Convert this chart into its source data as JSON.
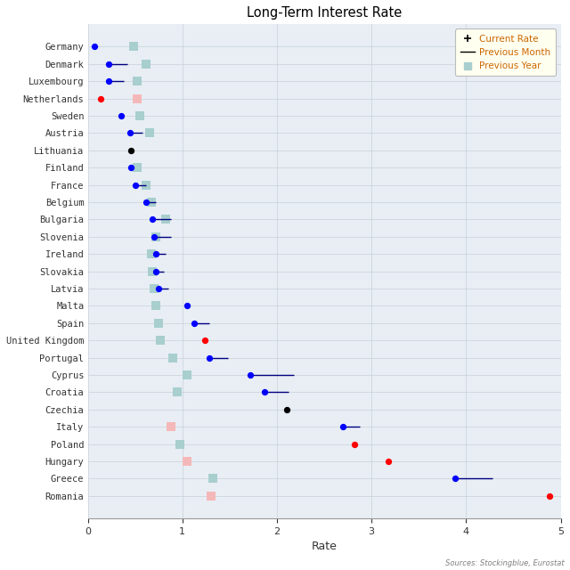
{
  "title": "Long-Term Interest Rate",
  "xlabel": "Rate",
  "source_text": "Sources: Stockingblue, Eurostat",
  "countries": [
    "Germany",
    "Denmark",
    "Luxembourg",
    "Netherlands",
    "Sweden",
    "Austria",
    "Lithuania",
    "Finland",
    "France",
    "Belgium",
    "Bulgaria",
    "Slovenia",
    "Ireland",
    "Slovakia",
    "Latvia",
    "Malta",
    "Spain",
    "United Kingdom",
    "Portugal",
    "Cyprus",
    "Croatia",
    "Czechia",
    "Italy",
    "Poland",
    "Hungary",
    "Greece",
    "Romania"
  ],
  "current_rate": [
    0.07,
    0.22,
    0.22,
    0.14,
    0.35,
    0.45,
    0.46,
    0.46,
    0.5,
    0.62,
    0.68,
    0.7,
    0.72,
    0.72,
    0.75,
    1.05,
    1.12,
    1.24,
    1.28,
    1.72,
    1.87,
    2.1,
    2.7,
    2.82,
    3.18,
    3.88,
    4.88
  ],
  "current_color": [
    "blue",
    "blue",
    "blue",
    "red",
    "blue",
    "blue",
    "black",
    "blue",
    "blue",
    "blue",
    "blue",
    "blue",
    "blue",
    "blue",
    "blue",
    "blue",
    "blue",
    "red",
    "blue",
    "blue",
    "blue",
    "black",
    "blue",
    "red",
    "red",
    "blue",
    "red"
  ],
  "prev_month": [
    null,
    0.42,
    0.38,
    null,
    null,
    0.58,
    null,
    null,
    0.62,
    0.72,
    0.88,
    0.88,
    0.82,
    0.8,
    0.85,
    null,
    1.28,
    null,
    1.48,
    2.18,
    2.12,
    null,
    2.88,
    null,
    null,
    4.28,
    null
  ],
  "prev_year_teal": [
    0.48,
    0.62,
    0.52,
    null,
    0.55,
    0.65,
    null,
    0.52,
    0.62,
    0.67,
    0.82,
    0.72,
    0.67,
    0.68,
    0.7,
    0.72,
    0.75,
    0.77,
    0.9,
    1.05,
    0.95,
    null,
    null,
    0.97,
    null,
    1.32,
    null
  ],
  "prev_year_pink": [
    null,
    null,
    null,
    0.52,
    null,
    null,
    null,
    null,
    null,
    null,
    null,
    null,
    null,
    null,
    null,
    null,
    null,
    null,
    null,
    null,
    null,
    null,
    0.88,
    null,
    1.05,
    null,
    1.3
  ],
  "xlim": [
    0,
    5
  ],
  "bg_color": "#e8eef4",
  "grid_color": "#c8d0d8",
  "legend_bg": "#fffff0",
  "fig_facecolor": "#ffffff"
}
